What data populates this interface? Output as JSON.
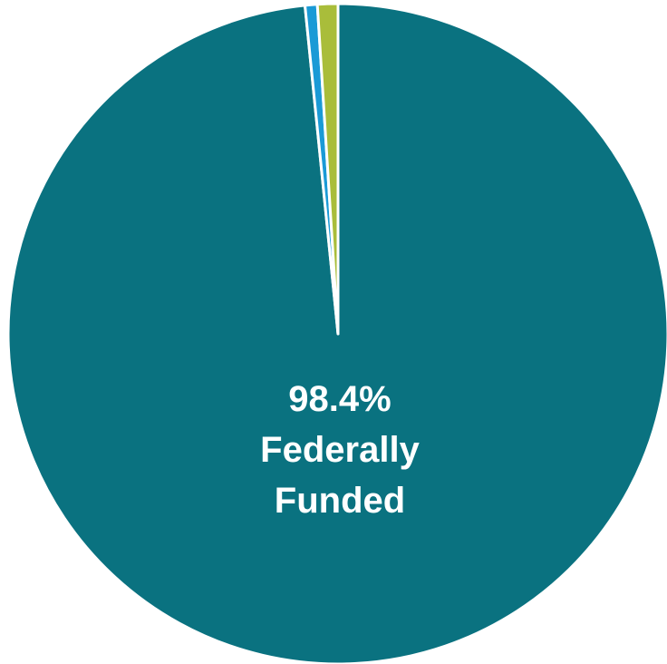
{
  "chart_data": {
    "type": "pie",
    "categories": [
      "Federally Funded",
      null,
      null
    ],
    "values": [
      98.4,
      0.6,
      1.0
    ],
    "value_labels": [
      "98.4%",
      null,
      null
    ],
    "colors": [
      "#0a7280",
      "#1a9ad6",
      "#a9bd3a"
    ],
    "start_angle": 0,
    "direction": "clockwise"
  }
}
